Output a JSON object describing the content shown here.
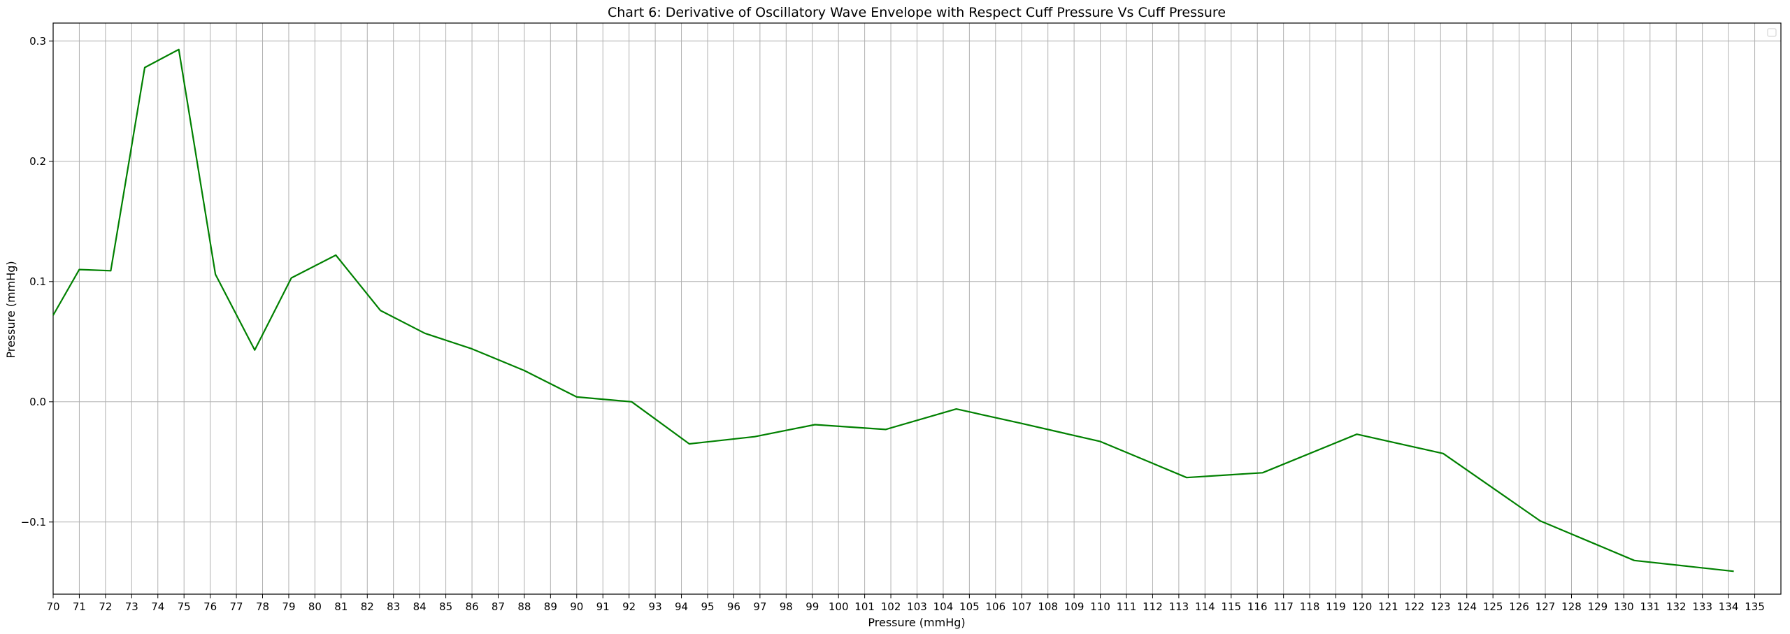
{
  "chart_data": {
    "type": "line",
    "title": "Chart 6: Derivative of Oscillatory Wave Envelope with Respect Cuff Pressure Vs Cuff Pressure",
    "xlabel": "Pressure (mmHg)",
    "ylabel": "Pressure (mmHg)",
    "xlim": [
      70,
      136
    ],
    "ylim": [
      -0.16,
      0.315
    ],
    "xticks": [
      70,
      71,
      72,
      73,
      74,
      75,
      76,
      77,
      78,
      79,
      80,
      81,
      82,
      83,
      84,
      85,
      86,
      87,
      88,
      89,
      90,
      91,
      92,
      93,
      94,
      95,
      96,
      97,
      98,
      99,
      100,
      101,
      102,
      103,
      104,
      105,
      106,
      107,
      108,
      109,
      110,
      111,
      112,
      113,
      114,
      115,
      116,
      117,
      118,
      119,
      120,
      121,
      122,
      123,
      124,
      125,
      126,
      127,
      128,
      129,
      130,
      131,
      132,
      133,
      134,
      135
    ],
    "yticks": [
      -0.1,
      0.0,
      0.1,
      0.2,
      0.3
    ],
    "ytick_labels": [
      "−0.1",
      "0.0",
      "0.1",
      "0.2",
      "0.3"
    ],
    "grid": true,
    "legend": "top-right",
    "series": [
      {
        "color": "#008000",
        "x": [
          70.0,
          71.0,
          72.2,
          73.5,
          74.8,
          76.2,
          77.7,
          79.1,
          80.8,
          82.5,
          84.2,
          86.0,
          88.0,
          90.0,
          92.1,
          94.3,
          96.8,
          99.1,
          101.8,
          104.5,
          107.0,
          110.0,
          113.3,
          116.2,
          119.8,
          123.1,
          126.8,
          130.4,
          134.2
        ],
        "y": [
          0.072,
          0.11,
          0.109,
          0.278,
          0.293,
          0.106,
          0.043,
          0.103,
          0.122,
          0.076,
          0.057,
          0.044,
          0.026,
          0.004,
          0.0,
          -0.035,
          -0.029,
          -0.019,
          -0.023,
          -0.006,
          -0.018,
          -0.033,
          -0.063,
          -0.059,
          -0.027,
          -0.043,
          -0.099,
          -0.132,
          -0.141
        ]
      }
    ]
  }
}
